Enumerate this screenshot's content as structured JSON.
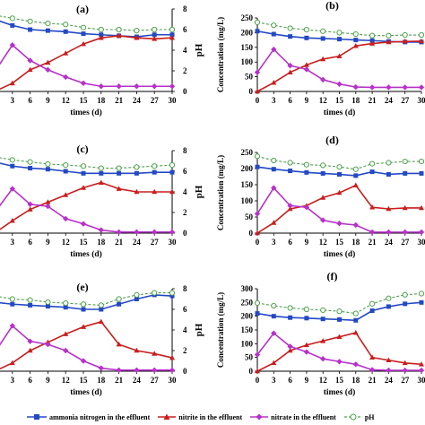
{
  "legend": {
    "ammonia": "ammonia nitrogen in the effluent",
    "nitrite": "nitrite in the effluent",
    "nitrate": "nitrate in the effluent",
    "ph": "pH"
  },
  "colors": {
    "ammonia": "#2349c4",
    "nitrite": "#c81e1e",
    "nitrate": "#b632c8",
    "ph": "#4fa04f"
  },
  "chart_data": [
    {
      "panel": "(a)",
      "type": "line",
      "x": [
        0,
        3,
        6,
        9,
        12,
        15,
        18,
        21,
        24,
        27,
        30
      ],
      "xlabel": "times (d)",
      "ylabel": "",
      "y2label": "pH",
      "y2lim": [
        0,
        8
      ],
      "y2ticks": [
        0,
        2,
        4,
        6,
        8
      ],
      "series": [
        {
          "key": "ammonia",
          "values": [
            7.0,
            6.4,
            6.0,
            5.9,
            5.8,
            5.6,
            5.5,
            5.4,
            5.3,
            5.5,
            5.5
          ]
        },
        {
          "key": "nitrite",
          "values": [
            0,
            0.8,
            2.1,
            2.8,
            3.7,
            4.6,
            5.2,
            5.4,
            5.2,
            5.1,
            5.2
          ]
        },
        {
          "key": "nitrate",
          "values": [
            1.9,
            4.5,
            3.0,
            2.1,
            1.4,
            0.8,
            0.5,
            0.5,
            0.5,
            0.5,
            0.5
          ]
        },
        {
          "key": "ph",
          "values": [
            7.4,
            7.1,
            6.8,
            6.6,
            6.5,
            6.2,
            6.0,
            6.0,
            5.9,
            6.0,
            6.0
          ]
        }
      ]
    },
    {
      "panel": "(b)",
      "type": "line",
      "x": [
        0,
        3,
        6,
        9,
        12,
        15,
        18,
        21,
        24,
        27,
        30
      ],
      "xlabel": "times (d)",
      "ylabel": "Concentration (mg/L)",
      "ylim": [
        0,
        250
      ],
      "yticks": [
        0,
        50,
        100,
        150,
        200,
        250
      ],
      "series": [
        {
          "key": "ammonia",
          "values": [
            205,
            195,
            187,
            182,
            180,
            178,
            175,
            173,
            170,
            168,
            168
          ]
        },
        {
          "key": "nitrite",
          "values": [
            0,
            30,
            65,
            90,
            110,
            120,
            155,
            163,
            168,
            170,
            171
          ]
        },
        {
          "key": "nitrate",
          "values": [
            65,
            143,
            88,
            75,
            40,
            25,
            15,
            14,
            14,
            14,
            14
          ]
        },
        {
          "key": "ph",
          "values": [
            235,
            225,
            215,
            210,
            205,
            200,
            195,
            190,
            190,
            192,
            192
          ]
        }
      ]
    },
    {
      "panel": "(c)",
      "type": "line",
      "x": [
        0,
        3,
        6,
        9,
        12,
        15,
        18,
        21,
        24,
        27,
        30
      ],
      "xlabel": "times (d)",
      "ylabel": "",
      "y2label": "pH",
      "y2lim": [
        0,
        8
      ],
      "y2ticks": [
        0,
        2,
        4,
        6,
        8
      ],
      "series": [
        {
          "key": "ammonia",
          "values": [
            6.9,
            6.5,
            6.3,
            6.2,
            6.0,
            5.8,
            5.8,
            5.8,
            5.8,
            5.9,
            5.9
          ]
        },
        {
          "key": "nitrite",
          "values": [
            0,
            1.2,
            2.3,
            3.0,
            3.7,
            4.4,
            4.9,
            4.3,
            4.0,
            4.0,
            4.0
          ]
        },
        {
          "key": "nitrate",
          "values": [
            2.0,
            4.3,
            2.8,
            2.6,
            1.4,
            0.9,
            0.3,
            0.1,
            0.1,
            0.1,
            0.1
          ]
        },
        {
          "key": "ph",
          "values": [
            7.4,
            7.1,
            6.9,
            6.7,
            6.6,
            6.5,
            6.3,
            6.3,
            6.4,
            6.5,
            6.6
          ]
        }
      ]
    },
    {
      "panel": "(d)",
      "type": "line",
      "x": [
        0,
        3,
        6,
        9,
        12,
        15,
        18,
        21,
        24,
        27,
        30
      ],
      "xlabel": "times (d)",
      "ylabel": "Concentration (mg/L)",
      "ylim": [
        0,
        250
      ],
      "yticks": [
        0,
        50,
        100,
        150,
        200,
        250
      ],
      "series": [
        {
          "key": "ammonia",
          "values": [
            205,
            198,
            193,
            188,
            185,
            182,
            178,
            190,
            182,
            185,
            185
          ]
        },
        {
          "key": "nitrite",
          "values": [
            0,
            32,
            75,
            85,
            110,
            125,
            148,
            80,
            75,
            78,
            78
          ]
        },
        {
          "key": "nitrate",
          "values": [
            60,
            140,
            85,
            80,
            40,
            30,
            25,
            3,
            3,
            3,
            3
          ]
        },
        {
          "key": "ph",
          "values": [
            238,
            225,
            218,
            212,
            210,
            205,
            198,
            215,
            218,
            222,
            222
          ]
        }
      ]
    },
    {
      "panel": "(e)",
      "type": "line",
      "x": [
        0,
        3,
        6,
        9,
        12,
        15,
        18,
        21,
        24,
        27,
        30
      ],
      "xlabel": "times (d)",
      "ylabel": "",
      "y2label": "pH",
      "y2lim": [
        0,
        8
      ],
      "y2ticks": [
        0,
        2,
        4,
        6,
        8
      ],
      "series": [
        {
          "key": "ammonia",
          "values": [
            6.7,
            6.5,
            6.4,
            6.3,
            6.2,
            6.0,
            6.0,
            6.5,
            7.0,
            7.4,
            7.3
          ]
        },
        {
          "key": "nitrite",
          "values": [
            0,
            0.8,
            2.0,
            2.8,
            3.6,
            4.3,
            4.8,
            2.6,
            2.0,
            1.7,
            1.3
          ]
        },
        {
          "key": "nitrate",
          "values": [
            1.8,
            4.4,
            2.9,
            2.6,
            2.0,
            1.0,
            0.3,
            0.1,
            0.1,
            0.1,
            0.1
          ]
        },
        {
          "key": "ph",
          "values": [
            7.3,
            7.0,
            6.9,
            6.7,
            6.6,
            6.5,
            6.4,
            7.0,
            7.4,
            7.6,
            7.6
          ]
        }
      ]
    },
    {
      "panel": "(f)",
      "type": "line",
      "x": [
        0,
        3,
        6,
        9,
        12,
        15,
        18,
        21,
        24,
        27,
        30
      ],
      "xlabel": "times (d)",
      "ylabel": "Concentration (mg/L)",
      "ylim": [
        0,
        300
      ],
      "yticks": [
        0,
        50,
        100,
        150,
        200,
        250,
        300
      ],
      "series": [
        {
          "key": "ammonia",
          "values": [
            210,
            200,
            195,
            193,
            190,
            188,
            185,
            220,
            235,
            245,
            250
          ]
        },
        {
          "key": "nitrite",
          "values": [
            0,
            30,
            75,
            95,
            110,
            125,
            140,
            50,
            40,
            30,
            25
          ]
        },
        {
          "key": "nitrate",
          "values": [
            60,
            138,
            90,
            70,
            45,
            35,
            25,
            5,
            3,
            3,
            3
          ]
        },
        {
          "key": "ph",
          "values": [
            248,
            238,
            230,
            225,
            222,
            218,
            210,
            245,
            265,
            278,
            282
          ]
        }
      ]
    }
  ]
}
